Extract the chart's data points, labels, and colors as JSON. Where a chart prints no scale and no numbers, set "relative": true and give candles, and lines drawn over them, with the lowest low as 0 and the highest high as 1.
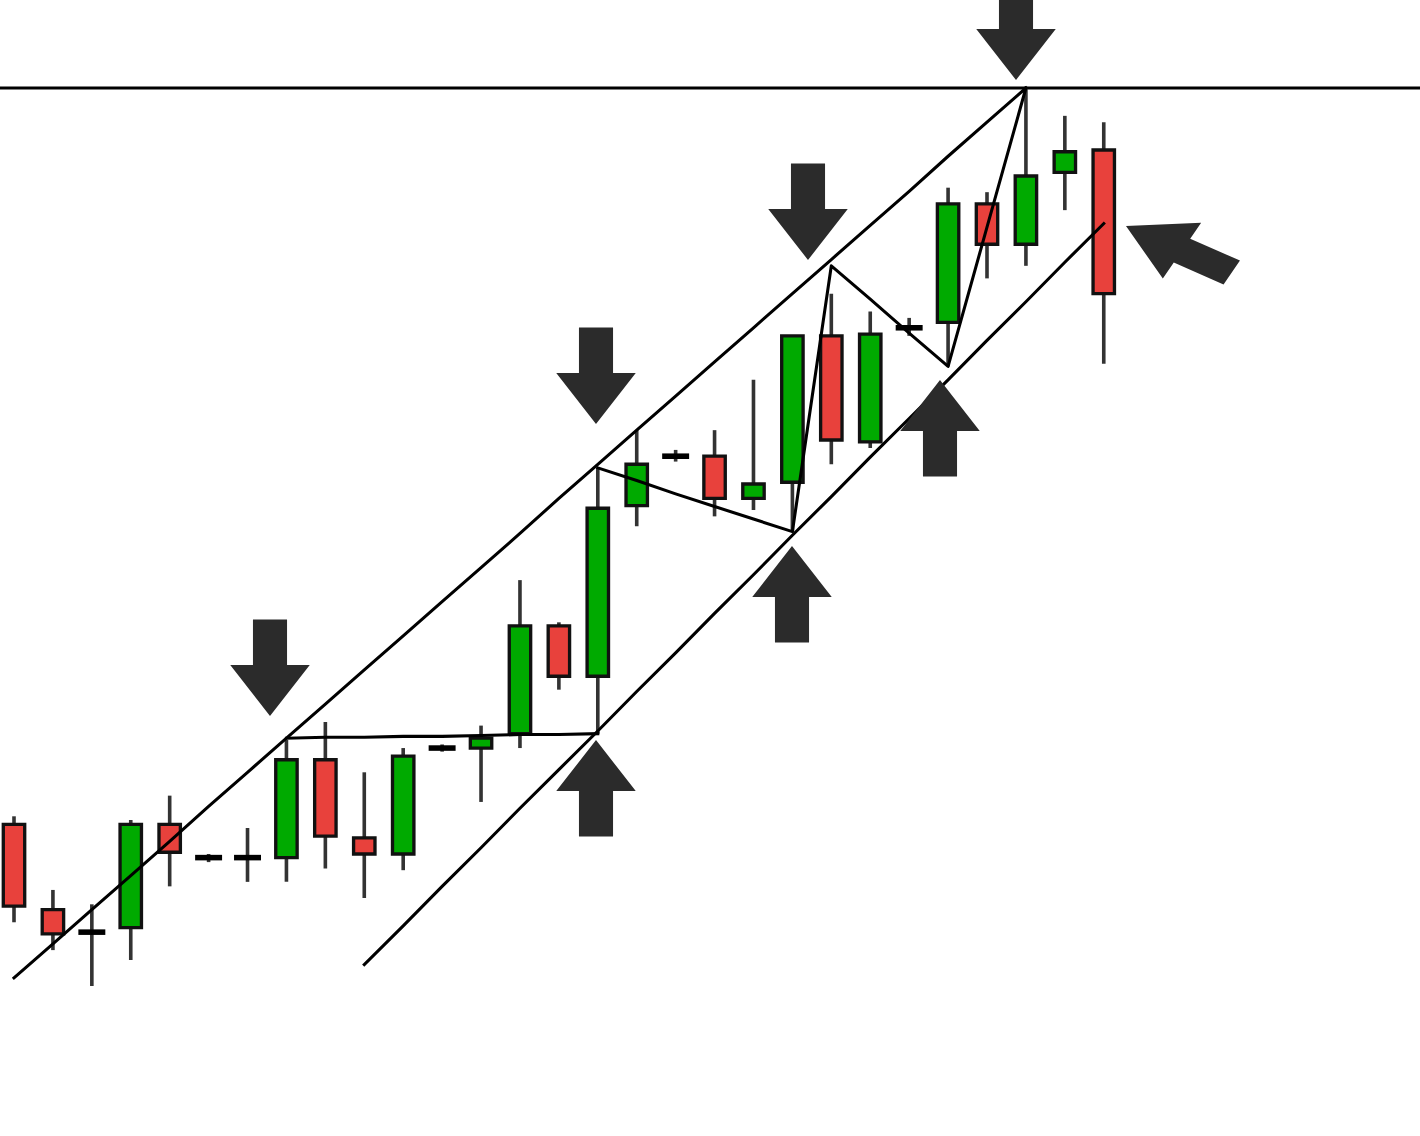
{
  "chart_data": {
    "type": "candlestick",
    "relative": true,
    "categories": [
      null,
      null,
      null,
      null,
      null,
      null,
      null,
      null,
      null,
      null,
      null,
      null,
      null,
      null,
      null,
      null,
      null,
      null,
      null,
      null,
      null,
      null,
      null,
      null,
      null,
      null,
      null,
      null,
      null
    ],
    "ohlc": [
      [
        0.18,
        0.189,
        0.071,
        0.089
      ],
      [
        0.085,
        0.107,
        0.04,
        0.058
      ],
      [
        0.06,
        0.091,
        0.0,
        0.06
      ],
      [
        0.065,
        0.185,
        0.029,
        0.18
      ],
      [
        0.18,
        0.212,
        0.111,
        0.149
      ],
      [
        0.143,
        0.147,
        0.138,
        0.143
      ],
      [
        0.143,
        0.176,
        0.116,
        0.143
      ],
      [
        0.143,
        0.274,
        0.116,
        0.252
      ],
      [
        0.252,
        0.294,
        0.131,
        0.167
      ],
      [
        0.165,
        0.238,
        0.098,
        0.147
      ],
      [
        0.147,
        0.265,
        0.129,
        0.256
      ],
      [
        0.265,
        0.269,
        0.261,
        0.265
      ],
      [
        0.265,
        0.29,
        0.205,
        0.276
      ],
      [
        0.281,
        0.452,
        0.265,
        0.401
      ],
      [
        0.401,
        0.405,
        0.33,
        0.345
      ],
      [
        0.345,
        0.577,
        0.281,
        0.532
      ],
      [
        0.535,
        0.619,
        0.512,
        0.581
      ],
      [
        0.59,
        0.597,
        0.584,
        0.59
      ],
      [
        0.59,
        0.619,
        0.523,
        0.543
      ],
      [
        0.543,
        0.675,
        0.53,
        0.559
      ],
      [
        0.561,
        0.724,
        0.506,
        0.724
      ],
      [
        0.724,
        0.771,
        0.581,
        0.608
      ],
      [
        0.606,
        0.751,
        0.599,
        0.726
      ],
      [
        0.733,
        0.744,
        0.724,
        0.733
      ],
      [
        0.739,
        0.889,
        0.69,
        0.871
      ],
      [
        0.871,
        0.884,
        0.788,
        0.826
      ],
      [
        0.826,
        1.0,
        0.802,
        0.902
      ],
      [
        0.906,
        0.969,
        0.864,
        0.929
      ],
      [
        0.931,
        0.962,
        0.693,
        0.771
      ]
    ],
    "colors": [
      "#e8413c",
      "#e8413c",
      "#000000",
      "#00aa00",
      "#e8413c",
      "#000000",
      "#000000",
      "#00aa00",
      "#e8413c",
      "#e8413c",
      "#00aa00",
      "#000000",
      "#00aa00",
      "#00aa00",
      "#e8413c",
      "#00aa00",
      "#00aa00",
      "#000000",
      "#e8413c",
      "#00aa00",
      "#00aa00",
      "#e8413c",
      "#00aa00",
      "#000000",
      "#00aa00",
      "#e8413c",
      "#00aa00",
      "#00aa00",
      "#e8413c"
    ],
    "series": [
      {
        "type": "line",
        "color": "#000000",
        "values": [
          0.009,
          0.047,
          0.085,
          0.123,
          0.161,
          0.2,
          0.238,
          0.276,
          0.314,
          0.352,
          0.39,
          0.428,
          0.466,
          0.504,
          0.543,
          0.581,
          0.619,
          0.657,
          0.695,
          0.733,
          0.771,
          0.809,
          0.847,
          0.885,
          0.924,
          0.962,
          1.0,
          null,
          null
        ]
      },
      {
        "type": "line",
        "color": "#000000",
        "values": [
          null,
          null,
          null,
          null,
          null,
          null,
          null,
          null,
          null,
          0.024,
          0.067,
          0.111,
          0.154,
          0.198,
          0.241,
          0.284,
          0.328,
          0.371,
          0.415,
          0.458,
          0.502,
          0.545,
          0.589,
          0.632,
          0.675,
          0.719,
          0.762,
          0.806,
          0.849
        ]
      },
      {
        "type": "line",
        "color": "#000000",
        "values": [
          null,
          null,
          null,
          null,
          null,
          null,
          null,
          0.276,
          0.277,
          0.277,
          0.278,
          0.278,
          0.279,
          0.28,
          0.28,
          0.281,
          null,
          null,
          null,
          null,
          null,
          null,
          null,
          null,
          null,
          null,
          null,
          null,
          null
        ]
      },
      {
        "type": "line",
        "color": "#000000",
        "values": [
          null,
          null,
          null,
          null,
          null,
          null,
          null,
          null,
          null,
          null,
          null,
          null,
          null,
          null,
          null,
          0.577,
          0.563,
          0.548,
          0.534,
          0.52,
          0.506,
          0.802,
          0.765,
          0.727,
          0.69,
          0.845,
          1.0,
          null,
          null
        ]
      }
    ],
    "ref_lines": [
      {
        "axis": "y",
        "value": 1.0,
        "color": "#000000"
      }
    ]
  }
}
